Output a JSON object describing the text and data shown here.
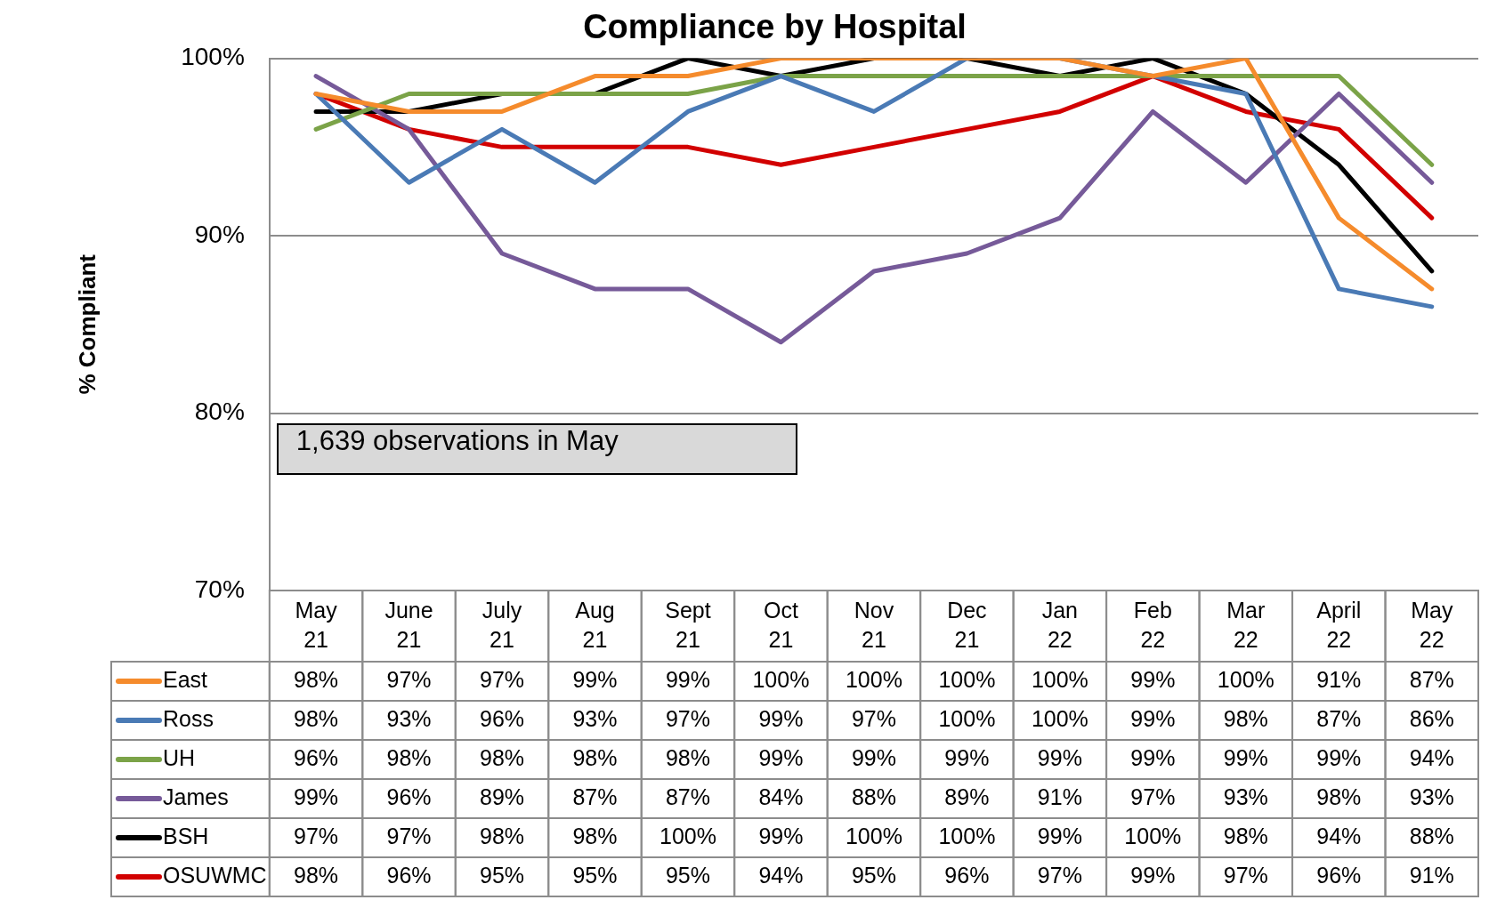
{
  "chart_data": {
    "type": "line",
    "title": "Compliance by Hospital",
    "ylabel": "% Compliant",
    "categories": [
      "May 21",
      "June 21",
      "July 21",
      "Aug 21",
      "Sept 21",
      "Oct 21",
      "Nov 21",
      "Dec 21",
      "Jan 22",
      "Feb 22",
      "Mar 22",
      "April 22",
      "May 22"
    ],
    "series": [
      {
        "name": "East",
        "color": "#f58b2c",
        "values": [
          98,
          97,
          97,
          99,
          99,
          100,
          100,
          100,
          100,
          99,
          100,
          91,
          87
        ],
        "value_labels": [
          "98%",
          "97%",
          "97%",
          "99%",
          "99%",
          "100%",
          "100%",
          "100%",
          "100%",
          "99%",
          "100%",
          "91%",
          "87%"
        ]
      },
      {
        "name": "Ross",
        "color": "#4a7ab5",
        "values": [
          98,
          93,
          96,
          93,
          97,
          99,
          97,
          100,
          100,
          99,
          98,
          87,
          86
        ],
        "value_labels": [
          "98%",
          "93%",
          "96%",
          "93%",
          "97%",
          "99%",
          "97%",
          "100%",
          "100%",
          "99%",
          "98%",
          "87%",
          "86%"
        ]
      },
      {
        "name": "UH",
        "color": "#7ba348",
        "values": [
          96,
          98,
          98,
          98,
          98,
          99,
          99,
          99,
          99,
          99,
          99,
          99,
          94
        ],
        "value_labels": [
          "96%",
          "98%",
          "98%",
          "98%",
          "98%",
          "99%",
          "99%",
          "99%",
          "99%",
          "99%",
          "99%",
          "99%",
          "94%"
        ]
      },
      {
        "name": "James",
        "color": "#765a99",
        "values": [
          99,
          96,
          89,
          87,
          87,
          84,
          88,
          89,
          91,
          97,
          93,
          98,
          93
        ],
        "value_labels": [
          "99%",
          "96%",
          "89%",
          "87%",
          "87%",
          "84%",
          "88%",
          "89%",
          "91%",
          "97%",
          "93%",
          "98%",
          "93%"
        ]
      },
      {
        "name": "BSH",
        "color": "#000000",
        "values": [
          97,
          97,
          98,
          98,
          100,
          99,
          100,
          100,
          99,
          100,
          98,
          94,
          88
        ],
        "value_labels": [
          "97%",
          "97%",
          "98%",
          "98%",
          "100%",
          "99%",
          "100%",
          "100%",
          "99%",
          "100%",
          "98%",
          "94%",
          "88%"
        ]
      },
      {
        "name": "OSUWMC",
        "color": "#d20000",
        "values": [
          98,
          96,
          95,
          95,
          95,
          94,
          95,
          96,
          97,
          99,
          97,
          96,
          91
        ],
        "value_labels": [
          "98%",
          "96%",
          "95%",
          "95%",
          "95%",
          "94%",
          "95%",
          "96%",
          "97%",
          "99%",
          "97%",
          "96%",
          "91%"
        ]
      }
    ],
    "ylim": [
      70,
      100
    ],
    "yticks": [
      {
        "value": 70,
        "label": "70%"
      },
      {
        "value": 80,
        "label": "80%"
      },
      {
        "value": 90,
        "label": "90%"
      },
      {
        "value": 100,
        "label": "100%"
      }
    ],
    "grid": "y",
    "legend": "bottom left",
    "marker": "none",
    "line_style": "solid",
    "annotations": [
      "1,639 observations in May"
    ]
  }
}
